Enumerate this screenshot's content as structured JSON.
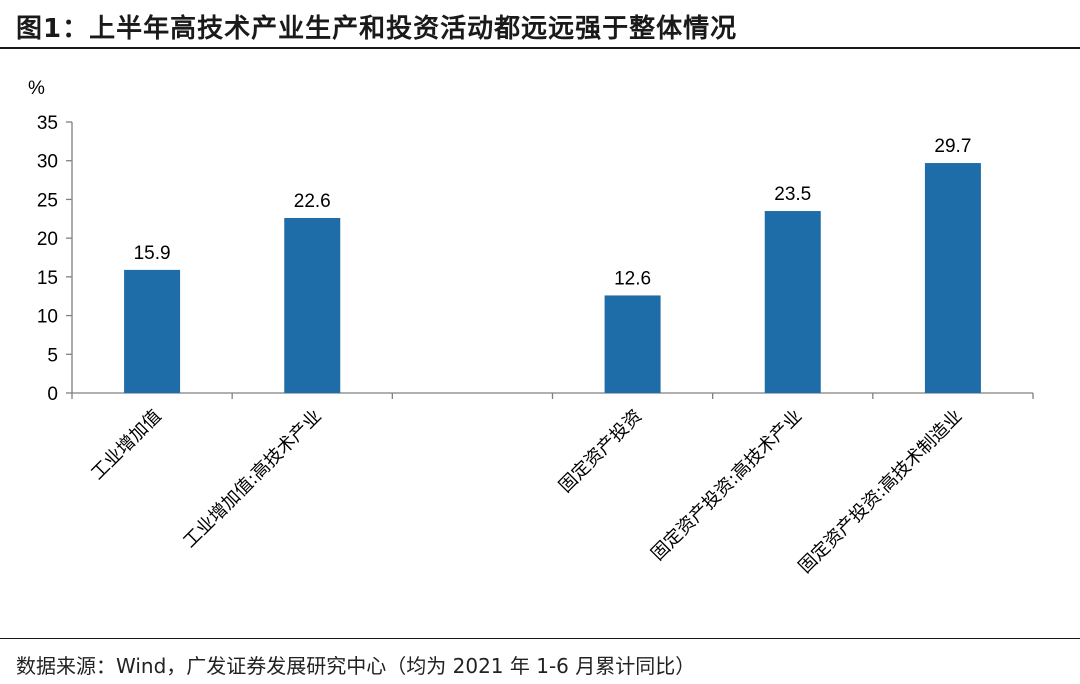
{
  "header": {
    "title": "图1：上半年高技术产业生产和投资活动都远远强于整体情况"
  },
  "footer": {
    "source": "数据来源：Wind，广发证券发展研究中心（均为 2021 年 1-6 月累计同比）"
  },
  "colors": {
    "bar": "#1F6DA8",
    "axis": "#808080",
    "rule": "#1a1a1a"
  },
  "chart_data": {
    "type": "bar",
    "title": "",
    "ylabel": "%",
    "xlabel": "",
    "ylim": [
      0,
      35
    ],
    "yticks": [
      0,
      5,
      10,
      15,
      20,
      25,
      30,
      35
    ],
    "grid": false,
    "categories": [
      "工业增加值",
      "工业增加值:高技术产业",
      "",
      "固定资产投资",
      "固定资产投资:高技术产业",
      "固定资产投资:高技术制造业"
    ],
    "values": [
      15.9,
      22.6,
      null,
      12.6,
      23.5,
      29.7
    ],
    "data_labels": [
      "15.9",
      "22.6",
      "",
      "12.6",
      "23.5",
      "29.7"
    ]
  }
}
